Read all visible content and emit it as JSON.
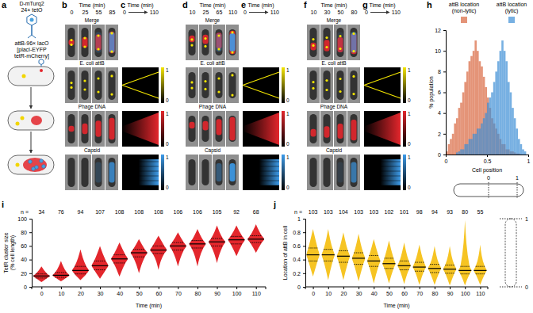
{
  "panel_labels": [
    "a",
    "b",
    "c",
    "d",
    "e",
    "f",
    "g",
    "h",
    "i",
    "j"
  ],
  "schematic": {
    "phage_labels": [
      "D-mTurq2",
      "24× tetO"
    ],
    "host_labels": [
      "attB-96× lacO",
      "[placI-EYFP",
      "tetR-mCherry]"
    ]
  },
  "micrographs": {
    "time_label": "Time (min)",
    "rows": [
      "Merge",
      "E. coli attB",
      "Phage DNA",
      "Capsid"
    ],
    "panels": [
      {
        "times": [
          0,
          25,
          55,
          85
        ]
      },
      {
        "times": [
          10,
          25,
          65,
          110
        ]
      },
      {
        "times": [
          10,
          30,
          50,
          80
        ]
      }
    ]
  },
  "kymographs": {
    "time_label": "Time (min)",
    "time_range": [
      0,
      110
    ],
    "colorbar_ticks": [
      0,
      1
    ]
  },
  "chart_data": [
    {
      "type": "histogram",
      "x_label": "Cell position",
      "y_label": "% population",
      "bins": [
        0,
        0.025,
        0.05,
        0.075,
        0.1,
        0.125,
        0.15,
        0.175,
        0.2,
        0.225,
        0.25,
        0.275,
        0.3,
        0.325,
        0.35,
        0.375,
        0.4,
        0.425,
        0.45,
        0.475,
        0.5,
        0.525,
        0.55,
        0.575,
        0.6,
        0.625,
        0.65,
        0.675,
        0.7,
        0.725,
        0.75,
        0.775,
        0.8,
        0.825,
        0.85,
        0.875,
        0.9,
        0.925,
        0.95,
        0.975,
        1
      ],
      "series": [
        {
          "name": "attB location (non-lytic)",
          "color": "#d9663f",
          "values": [
            0.3,
            1,
            1.5,
            2,
            3,
            3.5,
            4.5,
            5,
            6,
            7,
            8,
            9,
            9.5,
            10,
            11,
            10,
            9,
            8.5,
            7.5,
            6.5,
            5.5,
            4.5,
            3.5,
            3,
            2.5,
            2,
            1.5,
            1,
            1,
            0.5,
            0.5,
            0.3,
            0.3,
            0.2,
            0.1,
            0.1,
            0,
            0,
            0,
            0
          ]
        },
        {
          "name": "attB location (lytic)",
          "color": "#3d8fd6",
          "values": [
            0,
            0,
            0,
            0,
            0,
            0.2,
            0.3,
            0.5,
            0.5,
            1,
            1,
            1.5,
            1.5,
            2,
            2,
            2.5,
            2.5,
            3,
            3.5,
            4,
            5,
            5.5,
            6,
            7,
            8,
            9,
            10,
            11,
            10,
            9,
            7,
            6,
            4.5,
            3.5,
            2.5,
            1.5,
            1,
            0.5,
            0.3,
            0
          ]
        }
      ],
      "xlim": [
        0,
        1
      ],
      "xticks": [
        0,
        0.5,
        1
      ],
      "ylim": [
        0,
        12
      ],
      "yticks": [
        0,
        2,
        4,
        6,
        8,
        10,
        12
      ],
      "annotations": [
        "0",
        "1"
      ]
    },
    {
      "type": "violin",
      "x_label": "Time (min)",
      "y_label": "TetR cluster size (% cell length)",
      "color": "#e3262c",
      "categories": [
        0,
        10,
        20,
        30,
        40,
        50,
        60,
        70,
        80,
        90,
        100,
        110
      ],
      "n_label": "n =",
      "n": [
        34,
        76,
        94,
        107,
        108,
        108,
        108,
        106,
        106,
        105,
        92,
        68
      ],
      "min": [
        7,
        8,
        10,
        12,
        15,
        20,
        25,
        30,
        30,
        35,
        45,
        50
      ],
      "q1": [
        13,
        14,
        19,
        25,
        35,
        44,
        49,
        54,
        57,
        60,
        63,
        65
      ],
      "median": [
        16,
        17,
        24,
        31,
        41,
        50,
        54,
        60,
        63,
        66,
        69,
        70
      ],
      "q3": [
        19,
        21,
        30,
        38,
        47,
        55,
        60,
        65,
        68,
        71,
        74,
        75
      ],
      "max": [
        30,
        38,
        55,
        60,
        65,
        70,
        75,
        80,
        85,
        90,
        90,
        92
      ],
      "ylim": [
        0,
        100
      ],
      "yticks": [
        0,
        20,
        40,
        60,
        80,
        100
      ]
    },
    {
      "type": "violin",
      "x_label": "Time (min)",
      "y_label": "Location of attB in cell",
      "color": "#f6c423",
      "categories": [
        0,
        10,
        20,
        30,
        40,
        50,
        60,
        70,
        80,
        90,
        100,
        110
      ],
      "n_label": "n =",
      "n": [
        103,
        103,
        104,
        103,
        103,
        102,
        101,
        98,
        94,
        93,
        80,
        55
      ],
      "min": [
        0.15,
        0.1,
        0.1,
        0.08,
        0.05,
        0.05,
        0.04,
        0.03,
        0.03,
        0.02,
        0.02,
        0.03
      ],
      "q1": [
        0.38,
        0.38,
        0.36,
        0.33,
        0.3,
        0.27,
        0.25,
        0.23,
        0.21,
        0.2,
        0.19,
        0.19
      ],
      "median": [
        0.47,
        0.47,
        0.45,
        0.42,
        0.38,
        0.34,
        0.31,
        0.29,
        0.27,
        0.26,
        0.24,
        0.24
      ],
      "q3": [
        0.57,
        0.55,
        0.53,
        0.5,
        0.46,
        0.42,
        0.38,
        0.36,
        0.33,
        0.32,
        0.3,
        0.3
      ],
      "max": [
        0.85,
        0.85,
        0.8,
        0.78,
        0.7,
        0.68,
        0.65,
        0.62,
        0.6,
        0.6,
        0.98,
        0.62
      ],
      "ylim": [
        0,
        1
      ],
      "yticks": [
        0,
        0.2,
        0.4,
        0.6,
        0.8,
        1
      ],
      "annotations": [
        "1",
        "0"
      ]
    }
  ]
}
